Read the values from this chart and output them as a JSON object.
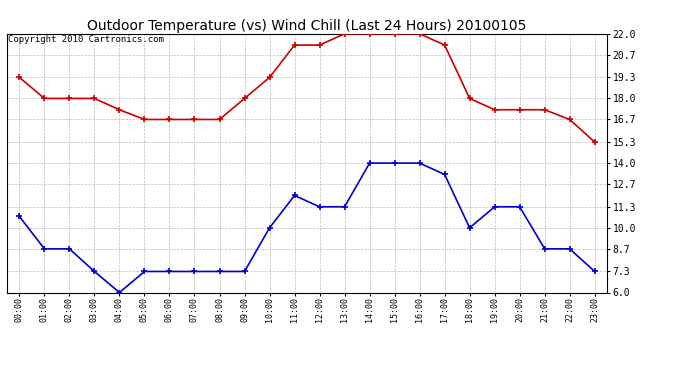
{
  "title": "Outdoor Temperature (vs) Wind Chill (Last 24 Hours) 20100105",
  "copyright": "Copyright 2010 Cartronics.com",
  "x_labels": [
    "00:00",
    "01:00",
    "02:00",
    "03:00",
    "04:00",
    "05:00",
    "06:00",
    "07:00",
    "08:00",
    "09:00",
    "10:00",
    "11:00",
    "12:00",
    "13:00",
    "14:00",
    "15:00",
    "16:00",
    "17:00",
    "18:00",
    "19:00",
    "20:00",
    "21:00",
    "22:00",
    "23:00"
  ],
  "red_data": [
    19.3,
    18.0,
    18.0,
    18.0,
    17.3,
    16.7,
    16.7,
    16.7,
    16.7,
    18.0,
    19.3,
    21.3,
    21.3,
    22.0,
    22.0,
    22.0,
    22.0,
    21.3,
    18.0,
    17.3,
    17.3,
    17.3,
    16.7,
    15.3
  ],
  "blue_data": [
    10.7,
    8.7,
    8.7,
    7.3,
    6.0,
    7.3,
    7.3,
    7.3,
    7.3,
    7.3,
    10.0,
    12.0,
    11.3,
    11.3,
    14.0,
    14.0,
    14.0,
    13.3,
    10.0,
    11.3,
    11.3,
    8.7,
    8.7,
    7.3
  ],
  "y_ticks": [
    6.0,
    7.3,
    8.7,
    10.0,
    11.3,
    12.7,
    14.0,
    15.3,
    16.7,
    18.0,
    19.3,
    20.7,
    22.0
  ],
  "y_min": 6.0,
  "y_max": 22.0,
  "red_color": "#cc0000",
  "blue_color": "#0000cc",
  "background_color": "#ffffff",
  "grid_color": "#bbbbbb",
  "title_fontsize": 10,
  "copyright_fontsize": 6.5
}
